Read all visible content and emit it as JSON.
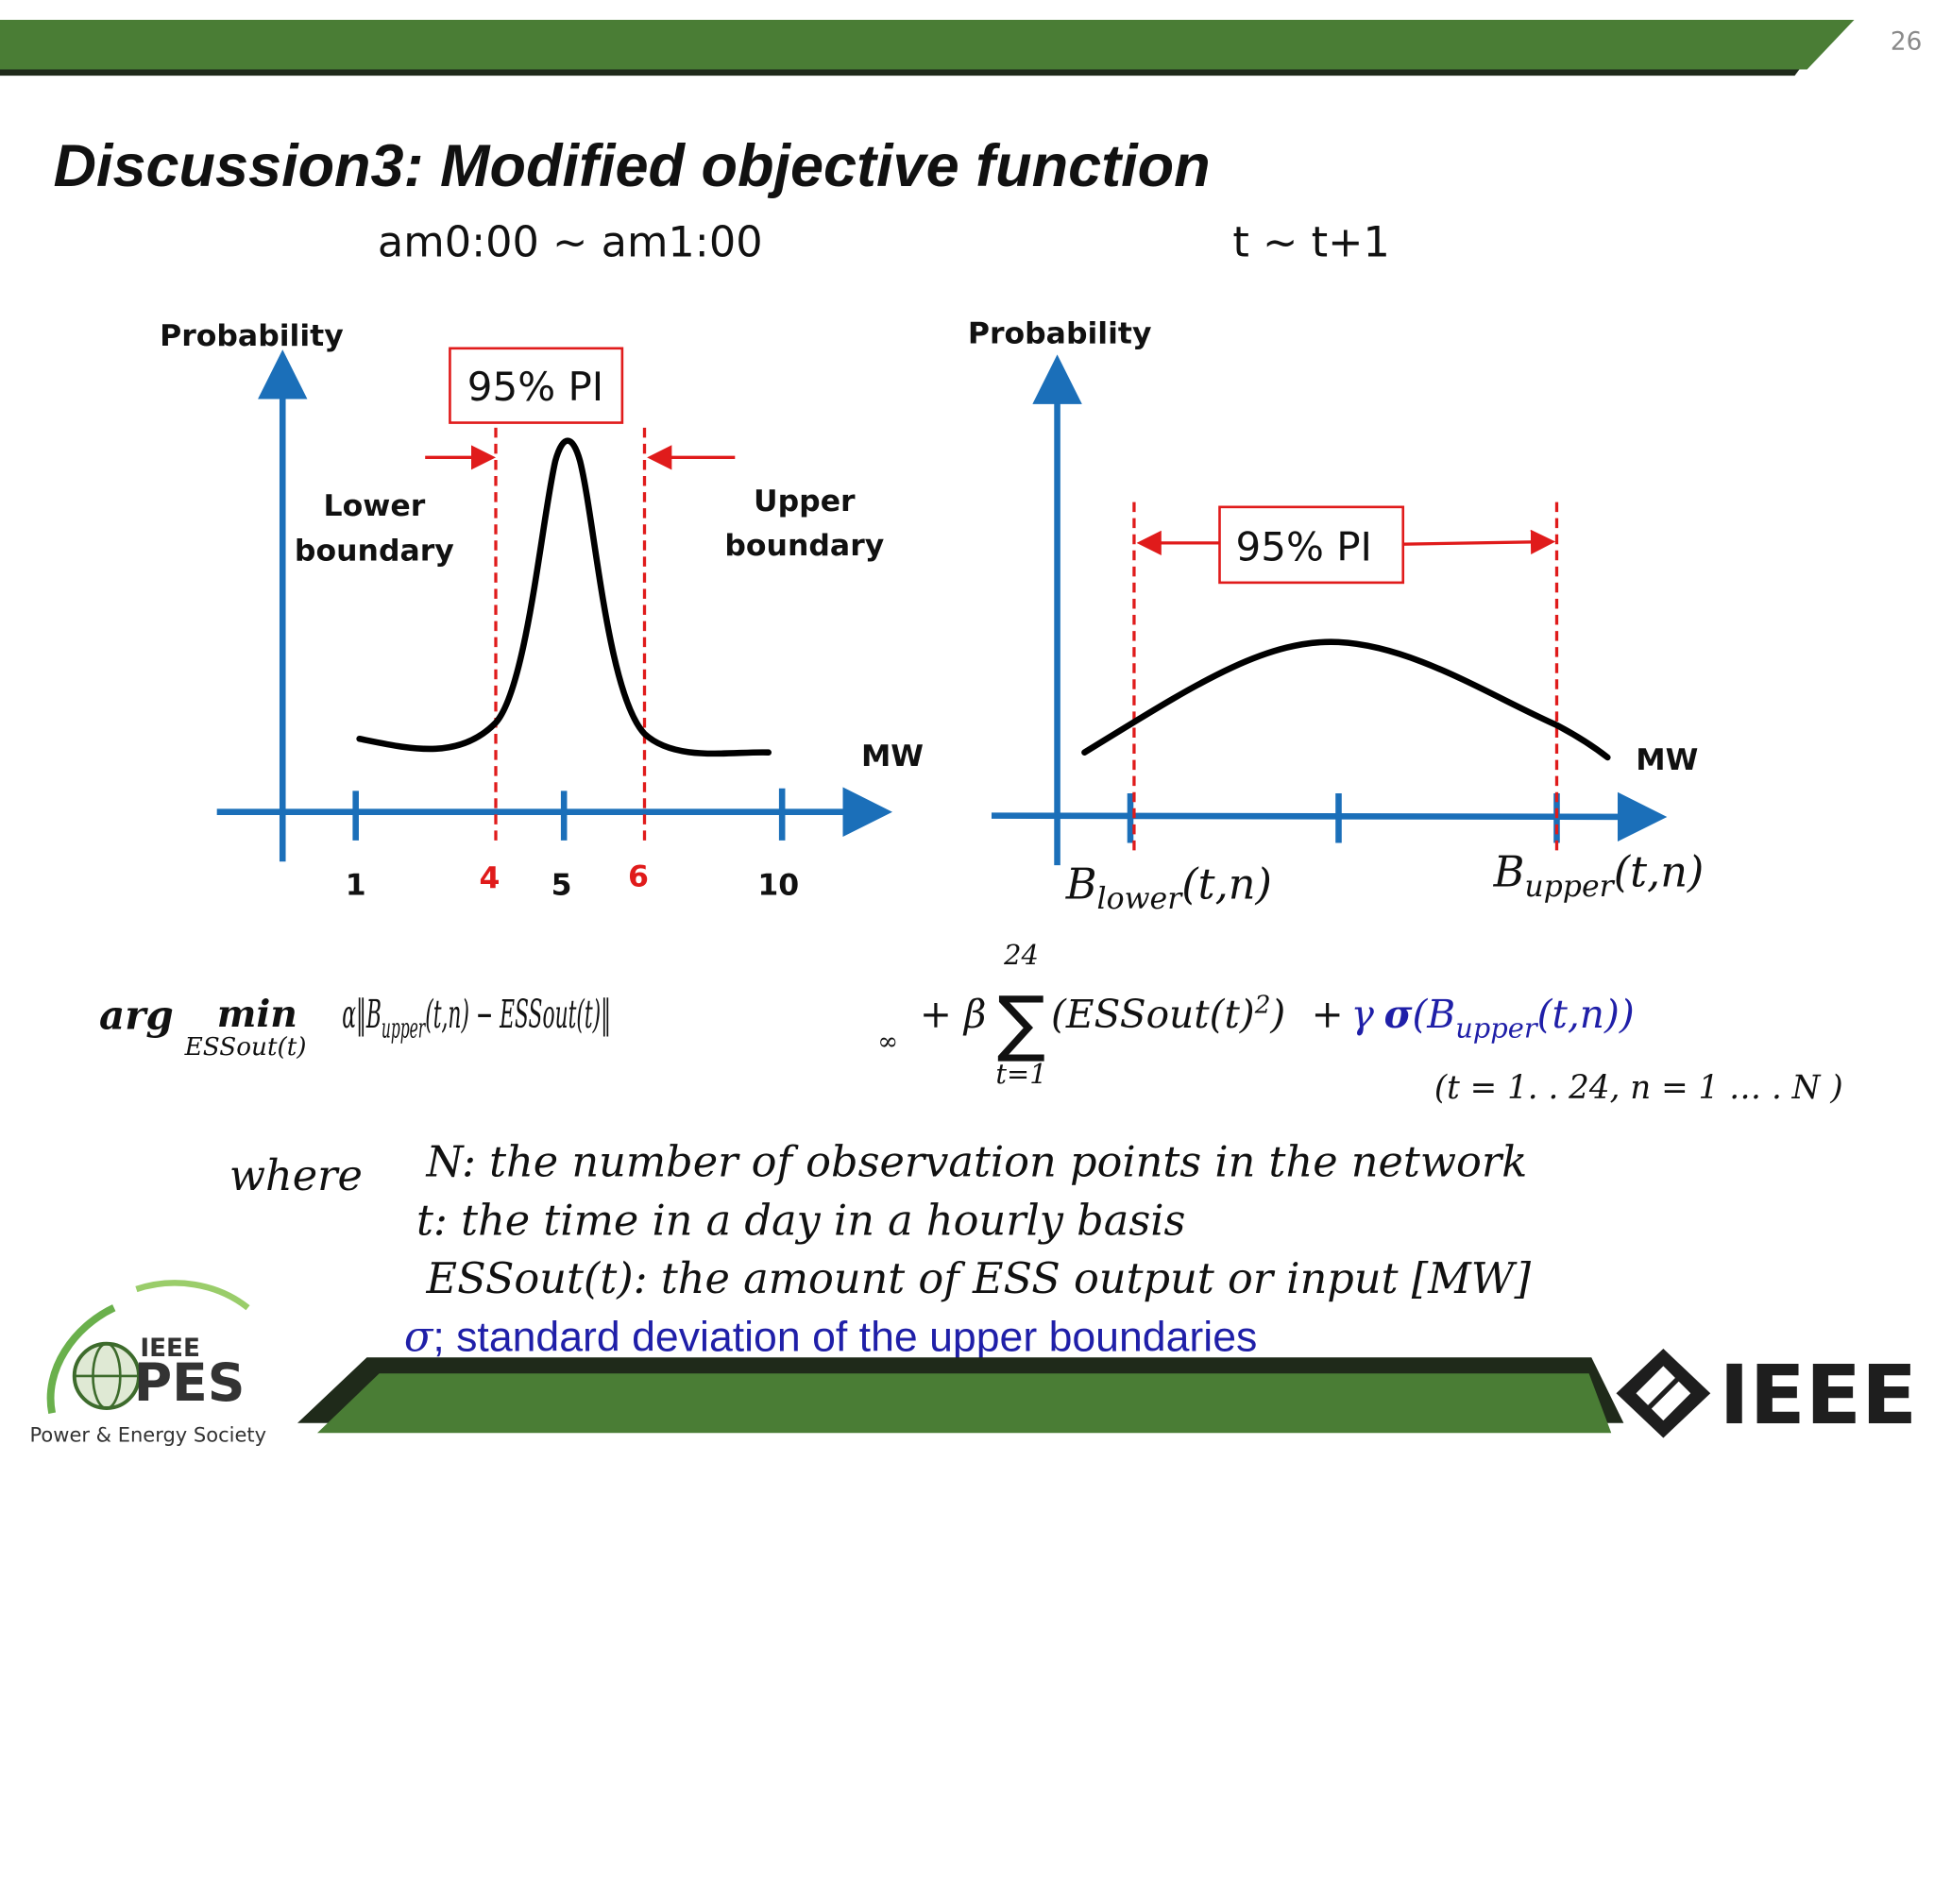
{
  "slide": {
    "page_number": "26",
    "title": "Discussion3: Modified objective function",
    "left_caption": "am0:00 ~ am1:00",
    "right_caption": "t ~ t+1"
  },
  "left_diagram": {
    "y_axis_label": "Probability",
    "x_axis_label": "MW",
    "pi_label": "95% PI",
    "lower_label_line1": "Lower",
    "lower_label_line2": "boundary",
    "upper_label_line1": "Upper",
    "upper_label_line2": "boundary",
    "tick_labels": [
      "1",
      "4",
      "5",
      "6",
      "10"
    ],
    "lower_boundary_value": 4,
    "upper_boundary_value": 6,
    "peak_value": 5,
    "colors": {
      "axis": "#1b6fb9",
      "boundary": "#e01b1b",
      "curve": "#000000"
    }
  },
  "right_diagram": {
    "y_axis_label": "Probability",
    "x_axis_label": "MW",
    "pi_label": "95% PI",
    "lower_tick": {
      "base": "B",
      "sub": "lower",
      "args": "(t,n)"
    },
    "upper_tick": {
      "base": "B",
      "sub": "upper",
      "args": "(t,n)"
    }
  },
  "formula": {
    "arg": "arg",
    "min": "min",
    "min_sub": "ESSout(t)",
    "term1": "α‖B",
    "term1_sub": "upper",
    "term1_rest": "(t,n) − ESSout(t)‖",
    "norm_sub": "∞",
    "plus_beta": "+ β",
    "sum_top": "24",
    "sum_symbol": "∑",
    "sum_bottom": "t=1",
    "term2": "(ESSout(t)",
    "term2_sup": "2",
    "term2_close": ")",
    "plus": "+",
    "gamma": "γ",
    "sigma": "σ",
    "sigma_open": "(B",
    "sigma_sub": "upper",
    "sigma_close": "(t,n))",
    "range": "(t = 1. . 24, n = 1 … . N )",
    "accent_color": "#1f1fa8"
  },
  "definitions": {
    "where": "where",
    "items": [
      "N: the number of observation points in the network",
      "t: the time in a day in a hourly basis",
      "ESSout(t): the amount of ESS output or input [MW]"
    ],
    "sigma_prefix": "σ",
    "sigma_text": "; standard deviation of the upper boundaries"
  },
  "logos": {
    "pes_top": "IEEE",
    "pes_main": "PES",
    "pes_caption": "Power & Energy Society",
    "ieee": "IEEE"
  },
  "theme": {
    "band_green": "#4a7d35",
    "band_shadow": "#1f2a1a"
  }
}
